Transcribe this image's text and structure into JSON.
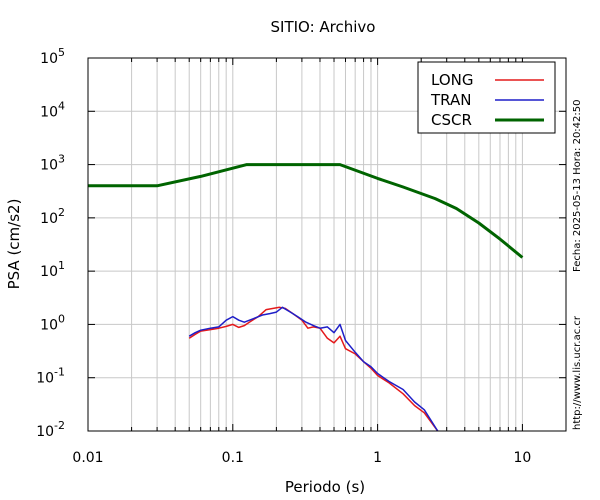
{
  "chart_data": {
    "type": "line",
    "title": "SITIO: Archivo",
    "xlabel": "Periodo (s)",
    "ylabel": "PSA (cm/s2)",
    "xscale": "log",
    "yscale": "log",
    "xlim": [
      0.01,
      20
    ],
    "ylim": [
      0.01,
      100000
    ],
    "grid": "vertical major and minor, horizontal major",
    "legend_position": "top-right",
    "x_tick_labels": [
      "0.01",
      "0.1",
      "1",
      "10"
    ],
    "x_ticks": [
      0.01,
      0.1,
      1,
      10
    ],
    "y_ticks": [
      {
        "base": "10",
        "exp": "-2",
        "value": 0.01
      },
      {
        "base": "10",
        "exp": "-1",
        "value": 0.1
      },
      {
        "base": "10",
        "exp": "0",
        "value": 1
      },
      {
        "base": "10",
        "exp": "1",
        "value": 10
      },
      {
        "base": "10",
        "exp": "2",
        "value": 100
      },
      {
        "base": "10",
        "exp": "3",
        "value": 1000
      },
      {
        "base": "10",
        "exp": "4",
        "value": 10000
      },
      {
        "base": "10",
        "exp": "5",
        "value": 100000
      }
    ],
    "side_text_top": "Fecha: 2025-05-13 Hora: 20:42:50",
    "side_text_bottom": "http://www.lis.ucr.ac.cr",
    "series": [
      {
        "name": "LONG",
        "color": "#e41a1c",
        "width": 1.5,
        "points": [
          [
            0.05,
            0.55
          ],
          [
            0.055,
            0.65
          ],
          [
            0.06,
            0.75
          ],
          [
            0.07,
            0.8
          ],
          [
            0.08,
            0.85
          ],
          [
            0.09,
            0.92
          ],
          [
            0.1,
            1.0
          ],
          [
            0.11,
            0.88
          ],
          [
            0.12,
            0.95
          ],
          [
            0.13,
            1.1
          ],
          [
            0.15,
            1.4
          ],
          [
            0.17,
            1.9
          ],
          [
            0.19,
            2.0
          ],
          [
            0.21,
            2.1
          ],
          [
            0.23,
            2.0
          ],
          [
            0.26,
            1.6
          ],
          [
            0.3,
            1.2
          ],
          [
            0.33,
            0.85
          ],
          [
            0.36,
            0.9
          ],
          [
            0.4,
            0.85
          ],
          [
            0.45,
            0.55
          ],
          [
            0.5,
            0.45
          ],
          [
            0.55,
            0.6
          ],
          [
            0.6,
            0.35
          ],
          [
            0.7,
            0.28
          ],
          [
            0.8,
            0.2
          ],
          [
            0.9,
            0.15
          ],
          [
            1.0,
            0.11
          ],
          [
            1.2,
            0.08
          ],
          [
            1.5,
            0.05
          ],
          [
            1.8,
            0.03
          ],
          [
            2.1,
            0.022
          ],
          [
            2.6,
            0.01
          ]
        ]
      },
      {
        "name": "TRAN",
        "color": "#1f1fc8",
        "width": 1.5,
        "points": [
          [
            0.05,
            0.6
          ],
          [
            0.055,
            0.7
          ],
          [
            0.06,
            0.78
          ],
          [
            0.07,
            0.85
          ],
          [
            0.08,
            0.9
          ],
          [
            0.09,
            1.2
          ],
          [
            0.1,
            1.4
          ],
          [
            0.11,
            1.2
          ],
          [
            0.12,
            1.1
          ],
          [
            0.14,
            1.3
          ],
          [
            0.16,
            1.5
          ],
          [
            0.18,
            1.6
          ],
          [
            0.2,
            1.7
          ],
          [
            0.22,
            2.1
          ],
          [
            0.25,
            1.7
          ],
          [
            0.28,
            1.4
          ],
          [
            0.32,
            1.1
          ],
          [
            0.36,
            0.95
          ],
          [
            0.4,
            0.85
          ],
          [
            0.45,
            0.9
          ],
          [
            0.5,
            0.7
          ],
          [
            0.55,
            1.0
          ],
          [
            0.6,
            0.5
          ],
          [
            0.7,
            0.3
          ],
          [
            0.8,
            0.2
          ],
          [
            0.9,
            0.16
          ],
          [
            1.0,
            0.12
          ],
          [
            1.2,
            0.085
          ],
          [
            1.5,
            0.06
          ],
          [
            1.8,
            0.035
          ],
          [
            2.1,
            0.025
          ],
          [
            2.6,
            0.01
          ]
        ]
      },
      {
        "name": "CSCR",
        "color": "#006400",
        "width": 3,
        "points": [
          [
            0.01,
            400
          ],
          [
            0.03,
            400
          ],
          [
            0.06,
            600
          ],
          [
            0.125,
            1000
          ],
          [
            0.55,
            1000
          ],
          [
            1.0,
            550
          ],
          [
            1.5,
            380
          ],
          [
            2.5,
            230
          ],
          [
            3.5,
            150
          ],
          [
            5,
            80
          ],
          [
            7,
            40
          ],
          [
            10,
            18
          ]
        ]
      }
    ]
  }
}
